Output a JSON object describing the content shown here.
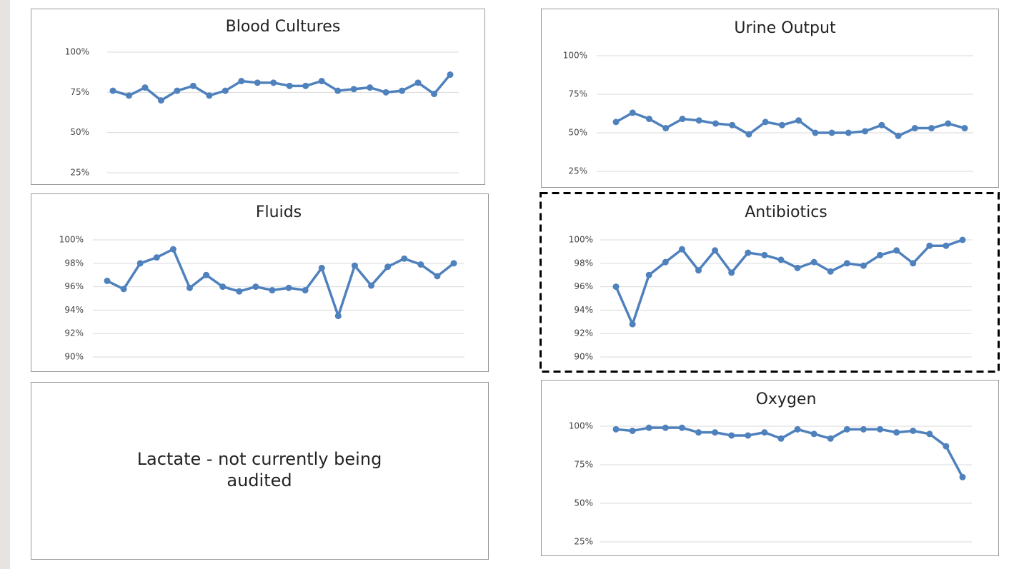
{
  "chart_data": [
    {
      "type": "line",
      "title": "Blood Cultures",
      "categories": [
        null,
        null,
        null,
        null,
        null,
        null,
        null,
        null,
        null,
        null,
        null,
        null,
        null,
        null,
        null,
        null,
        null,
        null,
        null,
        null,
        null,
        null
      ],
      "values": [
        76,
        73,
        78,
        70,
        76,
        79,
        73,
        76,
        82,
        81,
        81,
        79,
        79,
        82,
        76,
        77,
        78,
        75,
        76,
        81,
        74,
        86
      ],
      "color": "#4f81bd",
      "ylim": [
        25,
        100
      ],
      "yticks": [
        {
          "value": 25,
          "label": "25%"
        },
        {
          "value": 50,
          "label": "50%"
        },
        {
          "value": 75,
          "label": "75%"
        },
        {
          "value": 100,
          "label": "100%"
        }
      ],
      "grid": true
    },
    {
      "type": "line",
      "title": "Urine Output",
      "categories": [
        null,
        null,
        null,
        null,
        null,
        null,
        null,
        null,
        null,
        null,
        null,
        null,
        null,
        null,
        null,
        null,
        null,
        null,
        null,
        null,
        null,
        null
      ],
      "values": [
        57,
        63,
        59,
        53,
        59,
        58,
        56,
        55,
        49,
        57,
        55,
        58,
        50,
        50,
        50,
        51,
        55,
        48,
        53,
        53,
        56,
        53
      ],
      "color": "#4f81bd",
      "ylim": [
        25,
        100
      ],
      "yticks": [
        {
          "value": 25,
          "label": "25%"
        },
        {
          "value": 50,
          "label": "50%"
        },
        {
          "value": 75,
          "label": "75%"
        },
        {
          "value": 100,
          "label": "100%"
        }
      ],
      "grid": true
    },
    {
      "type": "line",
      "title": "Fluids",
      "categories": [
        null,
        null,
        null,
        null,
        null,
        null,
        null,
        null,
        null,
        null,
        null,
        null,
        null,
        null,
        null,
        null,
        null,
        null,
        null,
        null,
        null,
        null
      ],
      "values": [
        96.5,
        95.8,
        98,
        98.5,
        99.2,
        95.9,
        97,
        96,
        95.6,
        96,
        95.7,
        95.9,
        95.7,
        97.6,
        93.5,
        97.8,
        96.1,
        97.7,
        98.4,
        97.9,
        96.9,
        98
      ],
      "color": "#4f81bd",
      "ylim": [
        90,
        100
      ],
      "yticks": [
        {
          "value": 90,
          "label": "90%"
        },
        {
          "value": 92,
          "label": "92%"
        },
        {
          "value": 94,
          "label": "94%"
        },
        {
          "value": 96,
          "label": "96%"
        },
        {
          "value": 98,
          "label": "98%"
        },
        {
          "value": 100,
          "label": "100%"
        }
      ],
      "grid": true
    },
    {
      "type": "line",
      "title": "Antibiotics",
      "categories": [
        null,
        null,
        null,
        null,
        null,
        null,
        null,
        null,
        null,
        null,
        null,
        null,
        null,
        null,
        null,
        null,
        null,
        null,
        null,
        null,
        null,
        null
      ],
      "values": [
        96,
        92.8,
        97,
        98.1,
        99.2,
        97.4,
        99.1,
        97.2,
        98.9,
        98.7,
        98.3,
        97.6,
        98.1,
        97.3,
        98,
        97.8,
        98.7,
        99.1,
        98,
        99.5,
        99.5,
        100
      ],
      "color": "#4f81bd",
      "ylim": [
        90,
        100
      ],
      "yticks": [
        {
          "value": 90,
          "label": "90%"
        },
        {
          "value": 92,
          "label": "92%"
        },
        {
          "value": 94,
          "label": "94%"
        },
        {
          "value": 96,
          "label": "96%"
        },
        {
          "value": 98,
          "label": "98%"
        },
        {
          "value": 100,
          "label": "100%"
        }
      ],
      "grid": true
    },
    {
      "type": "line",
      "title": "Oxygen",
      "categories": [
        null,
        null,
        null,
        null,
        null,
        null,
        null,
        null,
        null,
        null,
        null,
        null,
        null,
        null,
        null,
        null,
        null,
        null,
        null,
        null,
        null,
        null
      ],
      "values": [
        98,
        97,
        99,
        99,
        99,
        96,
        96,
        94,
        94,
        96,
        92,
        98,
        95,
        92,
        98,
        98,
        98,
        96,
        97,
        95,
        87,
        67
      ],
      "color": "#4f81bd",
      "ylim": [
        25,
        100
      ],
      "yticks": [
        {
          "value": 25,
          "label": "25%"
        },
        {
          "value": 50,
          "label": "50%"
        },
        {
          "value": 75,
          "label": "75%"
        },
        {
          "value": 100,
          "label": "100%"
        }
      ],
      "grid": true
    }
  ],
  "note": "Lactate  - not currently being audited"
}
